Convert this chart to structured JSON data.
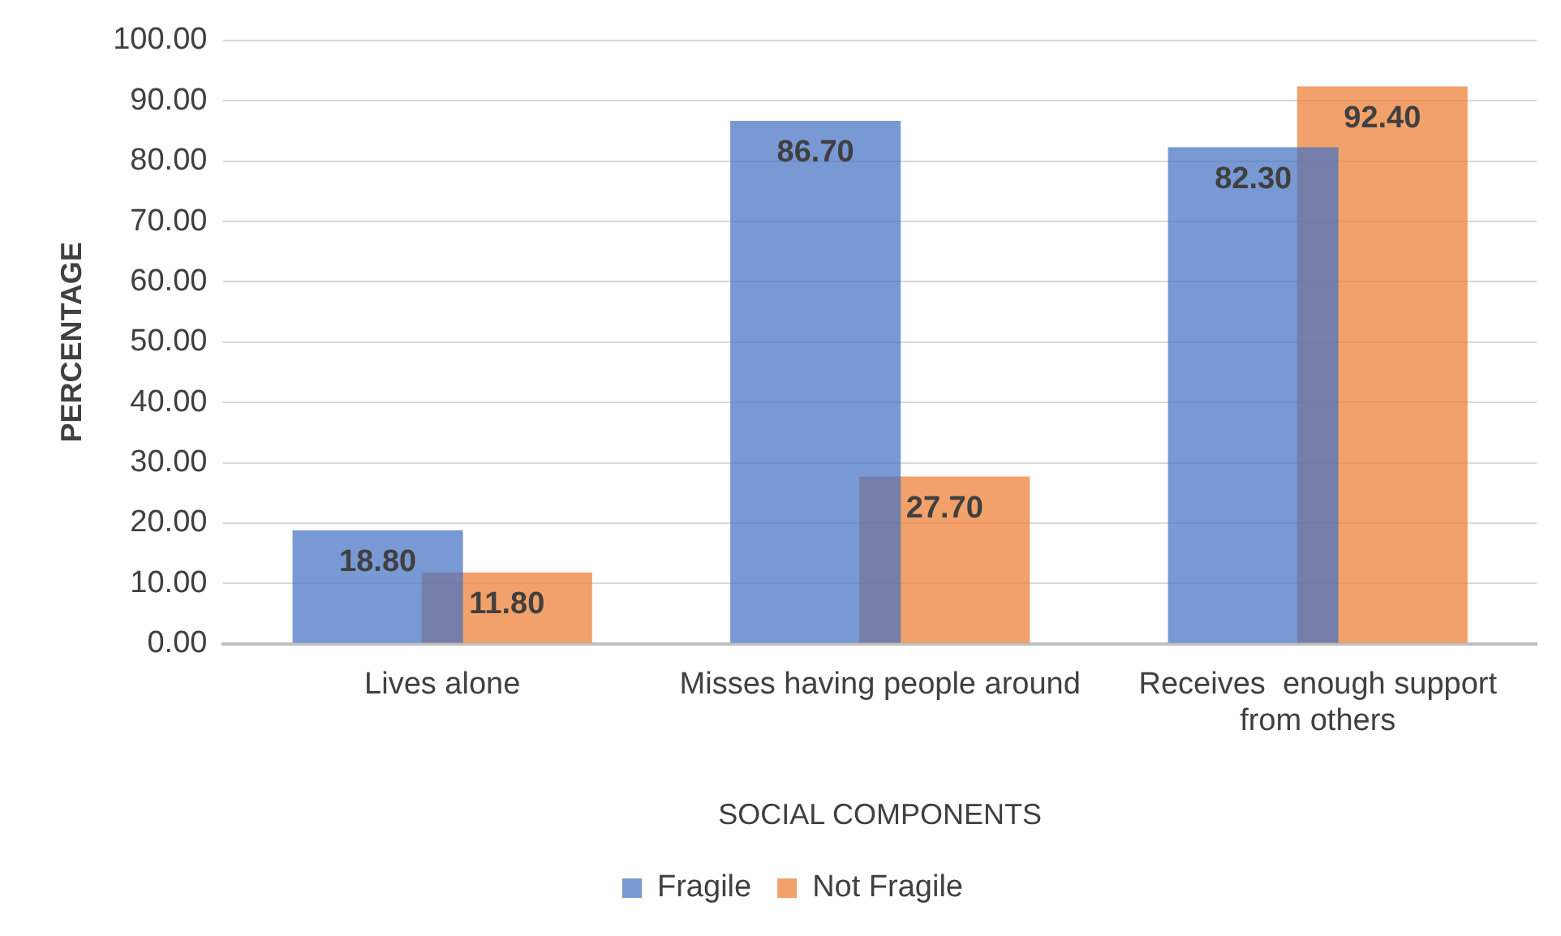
{
  "chart_data": {
    "type": "bar",
    "xlabel": "SOCIAL COMPONENTS",
    "ylabel": "PERCENTAGE",
    "categories": [
      "Lives alone",
      "Misses having people around",
      "Receives  enough support from others"
    ],
    "series": [
      {
        "name": "Fragile",
        "color": "#4472c4",
        "values": [
          18.8,
          86.7,
          82.3
        ],
        "value_labels": [
          "18.80",
          "86.70",
          "82.30"
        ]
      },
      {
        "name": "Not Fragile",
        "color": "#ed7d31",
        "values": [
          11.8,
          27.7,
          92.4
        ],
        "value_labels": [
          "11.80",
          "27.70",
          "92.40"
        ]
      }
    ],
    "ylim": [
      0,
      100
    ],
    "yticks": [
      {
        "value": 0,
        "label": "0.00"
      },
      {
        "value": 10,
        "label": "10.00"
      },
      {
        "value": 20,
        "label": "20.00"
      },
      {
        "value": 30,
        "label": "30.00"
      },
      {
        "value": 40,
        "label": "40.00"
      },
      {
        "value": 50,
        "label": "50.00"
      },
      {
        "value": 60,
        "label": "60.00"
      },
      {
        "value": 70,
        "label": "70.00"
      },
      {
        "value": 80,
        "label": "80.00"
      },
      {
        "value": 90,
        "label": "90.00"
      },
      {
        "value": 100,
        "label": "100.00"
      }
    ],
    "grid": "y",
    "legend": "bottom"
  }
}
